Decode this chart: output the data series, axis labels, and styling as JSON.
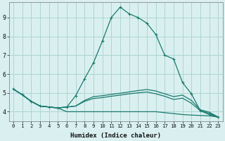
{
  "xlabel": "Humidex (Indice chaleur)",
  "background_color": "#daf0f0",
  "grid_color": "#aed4d4",
  "line_color": "#1a7a6e",
  "xlim": [
    -0.5,
    23.5
  ],
  "ylim": [
    3.5,
    9.8
  ],
  "xticks": [
    0,
    1,
    2,
    3,
    4,
    5,
    6,
    7,
    8,
    9,
    10,
    11,
    12,
    13,
    14,
    15,
    16,
    17,
    18,
    19,
    20,
    21,
    22,
    23
  ],
  "yticks": [
    4,
    5,
    6,
    7,
    8,
    9
  ],
  "curve_x": [
    0,
    1,
    2,
    3,
    4,
    5,
    6,
    7,
    8,
    9,
    10,
    11,
    12,
    13,
    14,
    15,
    16,
    17,
    18,
    19,
    20,
    21,
    22,
    23
  ],
  "curve_y": [
    5.2,
    4.9,
    4.55,
    4.3,
    4.25,
    4.2,
    4.25,
    4.85,
    5.75,
    6.6,
    7.75,
    9.0,
    9.55,
    9.2,
    9.0,
    8.7,
    8.1,
    7.0,
    6.8,
    5.55,
    4.95,
    4.05,
    3.85,
    3.7
  ],
  "flat1_x": [
    0,
    1,
    2,
    3,
    4,
    5,
    6,
    7,
    8,
    9,
    10,
    11,
    12,
    13,
    14,
    15,
    16,
    17,
    18,
    19,
    20,
    21,
    22,
    23
  ],
  "flat1_y": [
    5.2,
    4.9,
    4.55,
    4.3,
    4.25,
    4.2,
    4.25,
    4.3,
    4.6,
    4.8,
    4.85,
    4.92,
    4.98,
    5.05,
    5.12,
    5.18,
    5.1,
    4.95,
    4.8,
    4.88,
    4.6,
    4.1,
    3.98,
    3.72
  ],
  "flat2_x": [
    0,
    1,
    2,
    3,
    4,
    5,
    6,
    7,
    8,
    9,
    10,
    11,
    12,
    13,
    14,
    15,
    16,
    17,
    18,
    19,
    20,
    21,
    22,
    23
  ],
  "flat2_y": [
    5.2,
    4.9,
    4.55,
    4.3,
    4.25,
    4.2,
    4.25,
    4.3,
    4.55,
    4.7,
    4.75,
    4.82,
    4.88,
    4.95,
    5.0,
    5.05,
    4.95,
    4.82,
    4.65,
    4.72,
    4.45,
    4.05,
    3.92,
    3.7
  ],
  "flat3_x": [
    0,
    1,
    2,
    3,
    4,
    5,
    6,
    7,
    8,
    9,
    10,
    11,
    12,
    13,
    14,
    15,
    16,
    17,
    18,
    19,
    20,
    21,
    22,
    23
  ],
  "flat3_y": [
    5.2,
    4.9,
    4.55,
    4.3,
    4.25,
    4.2,
    4.0,
    4.0,
    4.0,
    4.0,
    4.0,
    4.0,
    4.0,
    4.0,
    4.0,
    4.0,
    4.0,
    3.95,
    3.9,
    3.85,
    3.82,
    3.8,
    3.78,
    3.72
  ]
}
